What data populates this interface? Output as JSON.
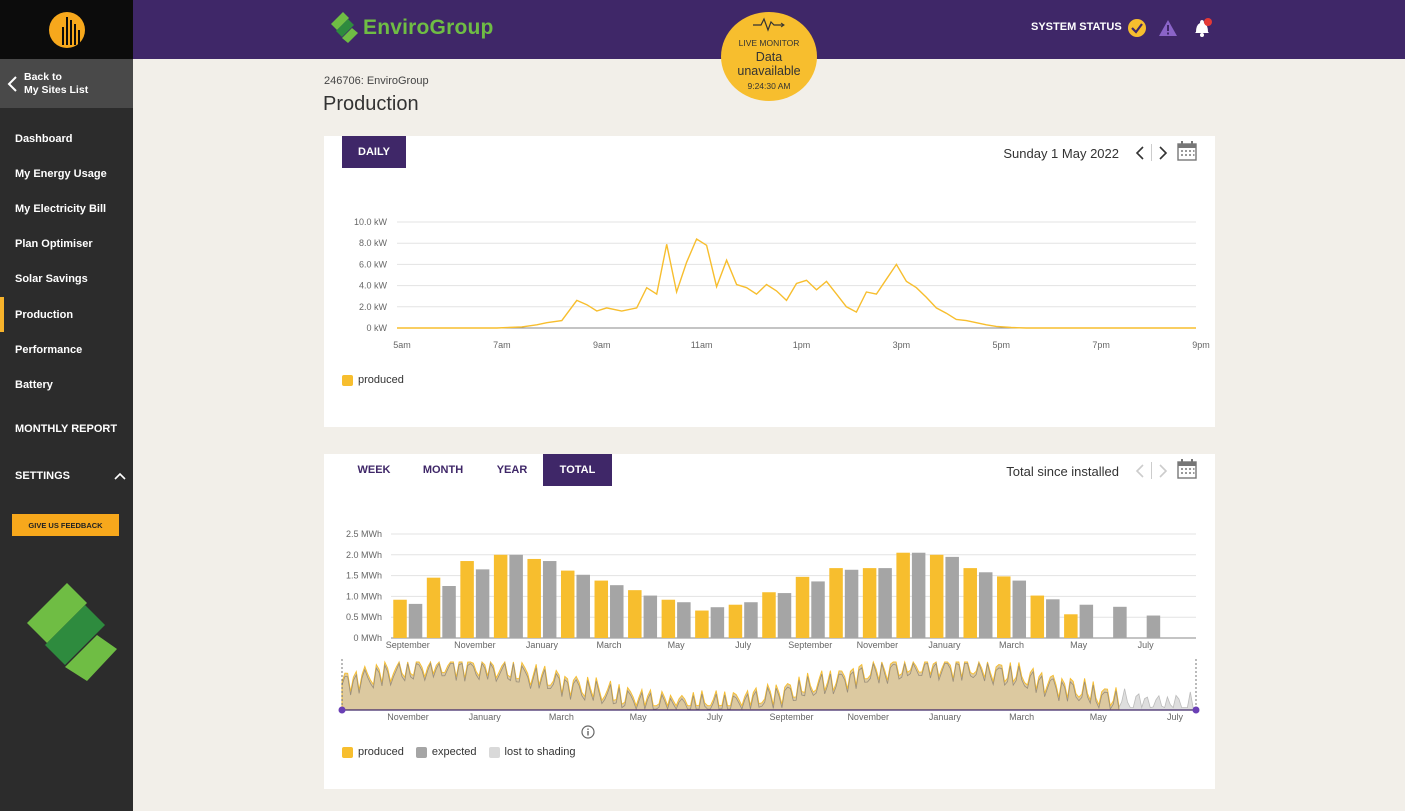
{
  "sidebar": {
    "back_label_line1": "Back to",
    "back_label_line2": "My Sites List",
    "items": [
      {
        "label": "Dashboard"
      },
      {
        "label": "My Energy Usage"
      },
      {
        "label": "My Electricity Bill"
      },
      {
        "label": "Plan Optimiser"
      },
      {
        "label": "Solar Savings"
      },
      {
        "label": "Production",
        "active": true
      },
      {
        "label": "Performance"
      },
      {
        "label": "Battery"
      }
    ],
    "monthly_report": "MONTHLY REPORT",
    "settings": "SETTINGS",
    "feedback": "GIVE US FEEDBACK"
  },
  "header": {
    "brand": "EnviroGroup",
    "system_status": "SYSTEM STATUS"
  },
  "live_monitor": {
    "title": "LIVE MONITOR",
    "status_line1": "Data",
    "status_line2": "unavailable",
    "time": "9:24:30 AM"
  },
  "page": {
    "site_id": "246706: EnviroGroup",
    "title": "Production"
  },
  "daily_panel": {
    "tab": "DAILY",
    "date": "Sunday 1 May 2022",
    "legend": [
      "produced"
    ]
  },
  "total_panel": {
    "tabs": [
      "WEEK",
      "MONTH",
      "YEAR",
      "TOTAL"
    ],
    "active_tab": "TOTAL",
    "date": "Total since installed",
    "legend": [
      "produced",
      "expected",
      "lost to shading"
    ]
  },
  "colors": {
    "purple": "#3f2768",
    "produced": "#f7be2e",
    "expected": "#a5a5a5",
    "shading": "#d9d9d9",
    "green": "#6fbd44"
  },
  "chart_data": [
    {
      "type": "line",
      "title": "",
      "x_ticks": [
        "5am",
        "7am",
        "9am",
        "11am",
        "1pm",
        "3pm",
        "5pm",
        "7pm",
        "9pm"
      ],
      "y_ticks": [
        "0 kW",
        "2.0 kW",
        "4.0 kW",
        "6.0 kW",
        "8.0 kW",
        "10.0 kW"
      ],
      "ylim": [
        0,
        10
      ],
      "xlim_hours": [
        5,
        21
      ],
      "series": [
        {
          "name": "produced",
          "x_hours": [
            5,
            6,
            7,
            7.5,
            7.8,
            8,
            8.3,
            8.6,
            8.8,
            9,
            9.2,
            9.5,
            9.8,
            10,
            10.2,
            10.4,
            10.6,
            10.8,
            11,
            11.2,
            11.4,
            11.6,
            11.8,
            12,
            12.2,
            12.4,
            12.6,
            12.8,
            13,
            13.2,
            13.4,
            13.6,
            13.8,
            14,
            14.2,
            14.4,
            14.6,
            14.8,
            15,
            15.2,
            15.4,
            15.6,
            15.8,
            16,
            16.2,
            16.4,
            16.6,
            16.8,
            17,
            17.3,
            17.6,
            18,
            19,
            20,
            21
          ],
          "values": [
            0,
            0,
            0,
            0.1,
            0.3,
            0.5,
            0.7,
            2.6,
            2.2,
            1.6,
            1.9,
            1.6,
            1.9,
            3.8,
            3.2,
            7.9,
            3.4,
            6.2,
            8.4,
            7.8,
            3.9,
            6.4,
            4.1,
            3.8,
            3.2,
            4.1,
            3.5,
            2.6,
            4.2,
            4.5,
            3.6,
            4.4,
            3.2,
            2.0,
            1.5,
            3.4,
            3.2,
            4.6,
            6.0,
            4.4,
            3.8,
            2.9,
            1.9,
            1.4,
            0.8,
            0.7,
            0.5,
            0.3,
            0.15,
            0.05,
            0,
            0,
            0,
            0,
            0
          ]
        }
      ]
    },
    {
      "type": "bar",
      "title": "",
      "x_ticks": [
        "September",
        "November",
        "January",
        "March",
        "May",
        "July",
        "September",
        "November",
        "January",
        "March",
        "May",
        "July"
      ],
      "y_ticks": [
        "0 MWh",
        "0.5 MWh",
        "1.0 MWh",
        "1.5 MWh",
        "2.0 MWh",
        "2.5 MWh"
      ],
      "ylim": [
        0,
        2.5
      ],
      "series": [
        {
          "name": "produced",
          "values": [
            0.92,
            1.45,
            1.85,
            2.0,
            1.9,
            1.62,
            1.38,
            1.15,
            0.92,
            0.66,
            0.8,
            1.1,
            1.47,
            1.68,
            1.68,
            2.05,
            2.0,
            1.68,
            1.48,
            1.02,
            0.57,
            null,
            null,
            null
          ]
        },
        {
          "name": "expected",
          "values": [
            0.82,
            1.25,
            1.65,
            2.0,
            1.85,
            1.52,
            1.27,
            1.02,
            0.86,
            0.74,
            0.86,
            1.08,
            1.36,
            1.64,
            1.68,
            2.05,
            1.95,
            1.58,
            1.38,
            0.93,
            0.8,
            0.75,
            0.54,
            null
          ]
        }
      ]
    },
    {
      "type": "area",
      "title": "",
      "x_ticks": [
        "November",
        "January",
        "March",
        "May",
        "July",
        "September",
        "November",
        "January",
        "March",
        "May",
        "July"
      ],
      "series_names": [
        "produced",
        "expected",
        "lost to shading"
      ]
    }
  ]
}
